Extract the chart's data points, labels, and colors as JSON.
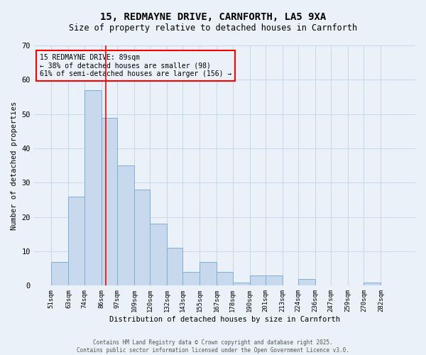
{
  "title_line1": "15, REDMAYNE DRIVE, CARNFORTH, LA5 9XA",
  "title_line2": "Size of property relative to detached houses in Carnforth",
  "xlabel": "Distribution of detached houses by size in Carnforth",
  "ylabel": "Number of detached properties",
  "bar_edges": [
    51,
    63,
    74,
    86,
    97,
    109,
    120,
    132,
    143,
    155,
    167,
    178,
    190,
    201,
    213,
    224,
    236,
    247,
    259,
    270,
    282
  ],
  "bar_heights": [
    7,
    26,
    57,
    49,
    35,
    28,
    18,
    11,
    4,
    7,
    4,
    1,
    3,
    3,
    0,
    2,
    0,
    0,
    0,
    1,
    0
  ],
  "bar_color": "#c9d9ed",
  "bar_edge_color": "#7bafd4",
  "grid_color": "#c8d8e8",
  "background_color": "#eaf1f8",
  "red_line_x": 89,
  "annotation_text": "15 REDMAYNE DRIVE: 89sqm\n← 38% of detached houses are smaller (98)\n61% of semi-detached houses are larger (156) →",
  "ylim": [
    0,
    70
  ],
  "tick_labels": [
    "51sqm",
    "63sqm",
    "74sqm",
    "86sqm",
    "97sqm",
    "109sqm",
    "120sqm",
    "132sqm",
    "143sqm",
    "155sqm",
    "167sqm",
    "178sqm",
    "190sqm",
    "201sqm",
    "213sqm",
    "224sqm",
    "236sqm",
    "247sqm",
    "259sqm",
    "270sqm",
    "282sqm"
  ],
  "footer_line1": "Contains HM Land Registry data © Crown copyright and database right 2025.",
  "footer_line2": "Contains public sector information licensed under the Open Government Licence v3.0."
}
